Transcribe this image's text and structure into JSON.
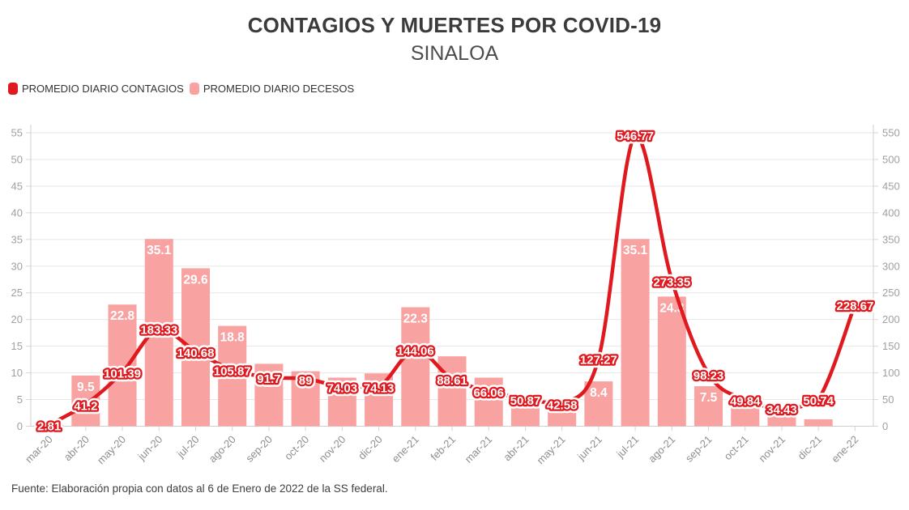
{
  "header": {
    "title": "CONTAGIOS Y MUERTES POR COVID-19",
    "subtitle": "SINALOA"
  },
  "legend": {
    "items": [
      {
        "label": "PROMEDIO DIARIO CONTAGIOS",
        "color": "#e0191f"
      },
      {
        "label": "PROMEDIO DIARIO DECESOS",
        "color": "#f8a2a1"
      }
    ]
  },
  "footer": {
    "source": "Fuente: Elaboración propia con datos al 6 de Enero de 2022 de la SS federal."
  },
  "colors": {
    "line_red": "#e0191f",
    "bar_pink": "#f8a2a1",
    "grid": "#e7e7e7",
    "axis": "#cfcfcf",
    "tick": "#d6d6d6",
    "tick_text": "#a0a0a0",
    "xlabel_text": "#8e8e8e",
    "title_text": "#3b3b3b"
  },
  "chart_data": {
    "type": "combo-bar-line",
    "title": "CONTAGIOS Y MUERTES POR COVID-19",
    "subtitle": "SINALOA",
    "categories": [
      "mar-20",
      "abr-20",
      "may-20",
      "jun-20",
      "jul-20",
      "ago-20",
      "sep-20",
      "oct-20",
      "nov-20",
      "dic-20",
      "ene-21",
      "feb-21",
      "mar-21",
      "abr-21",
      "may-21",
      "jun-21",
      "jul-21",
      "ago-21",
      "sep-21",
      "oct-21",
      "nov-21",
      "dic-21",
      "ene-22"
    ],
    "series": [
      {
        "name": "PROMEDIO DIARIO DECESOS",
        "type": "bar",
        "axis": "left",
        "color": "#f8a2a1",
        "values": [
          0.25,
          9.5,
          22.8,
          35.1,
          29.6,
          18.8,
          11.7,
          10.3,
          9.1,
          9.9,
          22.3,
          13.1,
          9.1,
          4.4,
          3.4,
          8.4,
          35.1,
          24.3,
          7.5,
          3.6,
          2.1,
          1.3,
          0
        ],
        "labels": [
          "",
          "9.5",
          "22.8",
          "35.1",
          "29.6",
          "18.8",
          "",
          "",
          "",
          "",
          "22.3",
          "",
          "",
          "",
          "",
          "8.4",
          "35.1",
          "24.3",
          "7.5",
          "",
          "",
          "",
          ""
        ]
      },
      {
        "name": "PROMEDIO DIARIO CONTAGIOS",
        "type": "line",
        "axis": "right",
        "color": "#e0191f",
        "values": [
          2.81,
          41.2,
          101.39,
          183.33,
          140.68,
          105.87,
          91.7,
          89,
          74.03,
          74.13,
          144.06,
          88.61,
          66.06,
          50.87,
          42.58,
          127.27,
          546.77,
          273.35,
          98.23,
          49.84,
          34.43,
          50.74,
          228.67
        ],
        "labels": [
          "2.81",
          "41.2",
          "101.39",
          "183.33",
          "140.68",
          "105.87",
          "91.7",
          "89",
          "74.03",
          "74.13",
          "144.06",
          "88.61",
          "66.06",
          "50.87",
          "42.58",
          "127.27",
          "546.77",
          "273.35",
          "98.23",
          "49.84",
          "34.43",
          "50.74",
          "228.67"
        ]
      }
    ],
    "yaxis_left": {
      "min": 0,
      "max": 55,
      "step": 5,
      "ticks": [
        0,
        5,
        10,
        15,
        20,
        25,
        30,
        35,
        40,
        45,
        50,
        55
      ]
    },
    "yaxis_right": {
      "min": 0,
      "max": 550,
      "step": 50,
      "ticks": [
        0,
        50,
        100,
        150,
        200,
        250,
        300,
        350,
        400,
        450,
        500,
        550
      ]
    },
    "grid": true,
    "legend_position": "top-left"
  }
}
